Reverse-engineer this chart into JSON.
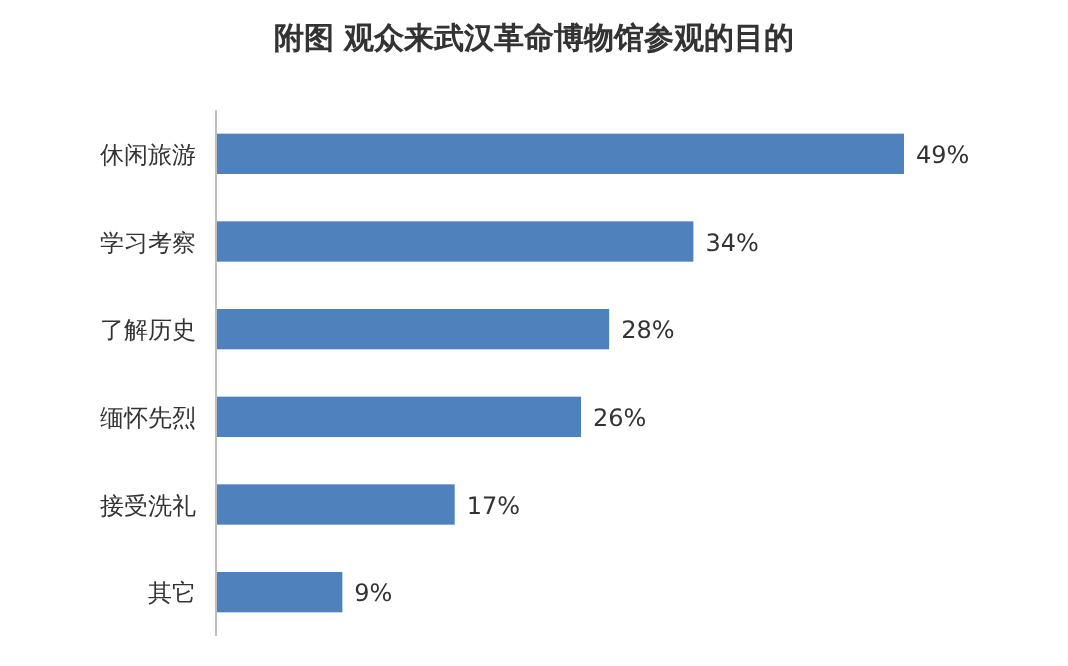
{
  "chart_data": {
    "type": "bar",
    "orientation": "horizontal",
    "title": "附图 观众来武汉革命博物馆参观的目的",
    "categories": [
      "休闲旅游",
      "学习考察",
      "了解历史",
      "缅怀先烈",
      "接受洗礼",
      "其它"
    ],
    "values": [
      49,
      34,
      28,
      26,
      17,
      9
    ],
    "value_labels": [
      "49%",
      "34%",
      "28%",
      "26%",
      "17%",
      "9%"
    ],
    "color": "#4f81bd"
  }
}
